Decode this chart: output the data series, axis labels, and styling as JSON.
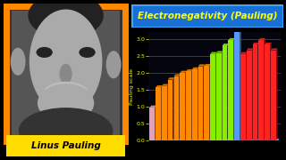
{
  "title": "Electronegativity (Pauling)",
  "ylabel": "Pauling scale",
  "yticks": [
    0.0,
    0.5,
    1.0,
    1.5,
    2.0,
    2.5,
    3.0
  ],
  "background_color": "#000000",
  "chart_bg": "#050510",
  "title_bg": "#1a6fd4",
  "title_border": "#44aaff",
  "title_color": "#ffff00",
  "ylabel_color": "#ffff00",
  "bar_groups": [
    {
      "color": "#e0a0b8",
      "values": [
        0.98
      ]
    },
    {
      "color": "#ff8800",
      "values": [
        1.57,
        1.61,
        1.8,
        1.9,
        2.0,
        2.04,
        2.1,
        2.19,
        2.2
      ]
    },
    {
      "color": "#88ee00",
      "values": [
        2.55,
        2.58,
        2.8,
        2.96
      ]
    },
    {
      "color": "#5599ff",
      "values": [
        3.44
      ]
    },
    {
      "color": "#ff2222",
      "values": [
        2.55,
        2.66,
        2.83,
        2.96,
        2.83,
        2.66
      ]
    }
  ],
  "floor_color": "#4488ee",
  "floor_dark": "#2255aa",
  "grid_color": "#aaaaaa",
  "linus_name": "Linus Pauling",
  "name_bg": "#ffdd00",
  "name_color": "#000000",
  "photo_border_color": "#ff8800",
  "ylim": [
    0.0,
    3.2
  ],
  "photo_bg": "#888888",
  "photo_dark": "#333333"
}
